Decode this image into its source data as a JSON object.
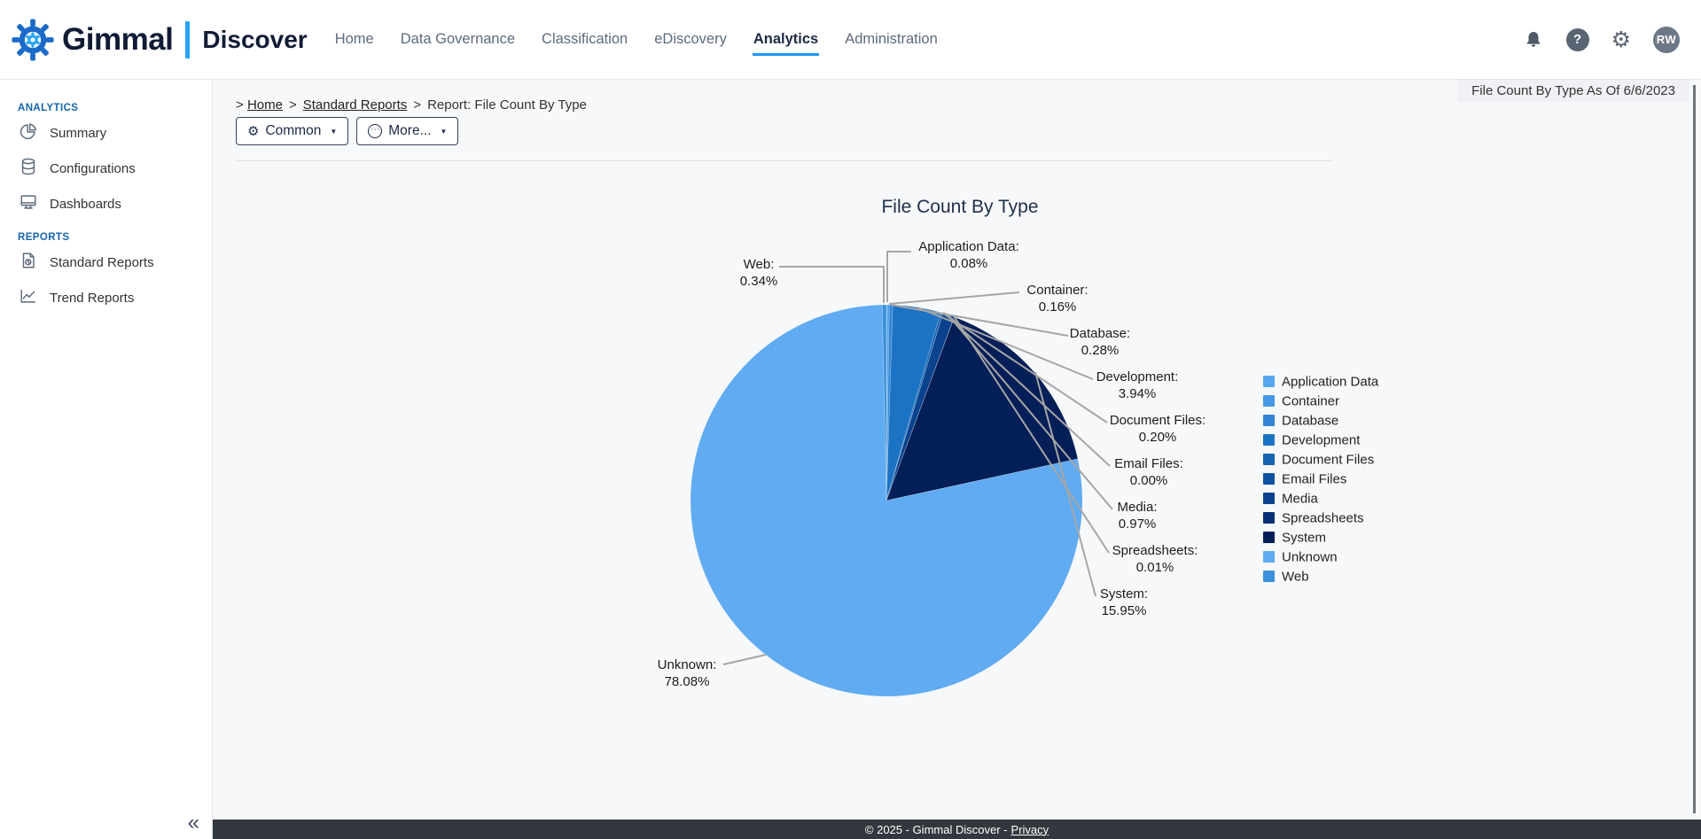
{
  "topbar": {
    "brand": "Gimmal",
    "product": "Discover",
    "nav": [
      {
        "label": "Home",
        "active": false
      },
      {
        "label": "Data Governance",
        "active": false
      },
      {
        "label": "Classification",
        "active": false
      },
      {
        "label": "eDiscovery",
        "active": false
      },
      {
        "label": "Analytics",
        "active": true
      },
      {
        "label": "Administration",
        "active": false
      }
    ],
    "help_glyph": "?",
    "gear_glyph": "⚙",
    "avatar_initials": "RW"
  },
  "sidebar": {
    "sections": [
      {
        "title": "ANALYTICS",
        "items": [
          {
            "label": "Summary",
            "icon": "pie-chart-icon"
          },
          {
            "label": "Configurations",
            "icon": "database-icon"
          },
          {
            "label": "Dashboards",
            "icon": "monitor-icon"
          }
        ]
      },
      {
        "title": "REPORTS",
        "items": [
          {
            "label": "Standard Reports",
            "icon": "report-document-icon"
          },
          {
            "label": "Trend Reports",
            "icon": "trend-line-icon"
          }
        ]
      }
    ],
    "collapse_glyph": "«"
  },
  "breadcrumb": {
    "prefix": ">",
    "separator": ">",
    "items": [
      {
        "label": "Home",
        "link": true
      },
      {
        "label": "Standard Reports",
        "link": true
      },
      {
        "label": "Report: File Count By Type",
        "link": false
      }
    ]
  },
  "toolbar": {
    "common_label": "Common",
    "more_label": "More...",
    "gear_glyph": "⚙",
    "more_glyph": "⋯",
    "caret_glyph": "▼"
  },
  "report_header": {
    "title": "File Count By Type As Of 6/6/2023"
  },
  "chart_data": {
    "type": "pie",
    "title": "File Count By Type",
    "categories": [
      "Application Data",
      "Container",
      "Database",
      "Development",
      "Document Files",
      "Email Files",
      "Media",
      "Spreadsheets",
      "System",
      "Unknown",
      "Web"
    ],
    "values": [
      0.08,
      0.16,
      0.28,
      3.94,
      0.2,
      0.0,
      0.97,
      0.01,
      15.95,
      78.08,
      0.34
    ],
    "display_values": [
      "0.08%",
      "0.16%",
      "0.28%",
      "3.94%",
      "0.20%",
      "0.00%",
      "0.97%",
      "0.01%",
      "15.95%",
      "78.08%",
      "0.34%"
    ],
    "colors": [
      "#58a6ef",
      "#4598e3",
      "#3286d5",
      "#1c73c4",
      "#1564b3",
      "#0d53a0",
      "#0a428d",
      "#083077",
      "#041e57",
      "#60abf1",
      "#3c90da"
    ],
    "legend_position": "right",
    "start_angle_deg": 0,
    "direction": "clockwise"
  },
  "footer": {
    "text": "© 2025 - Gimmal Discover -",
    "privacy_label": "Privacy"
  }
}
